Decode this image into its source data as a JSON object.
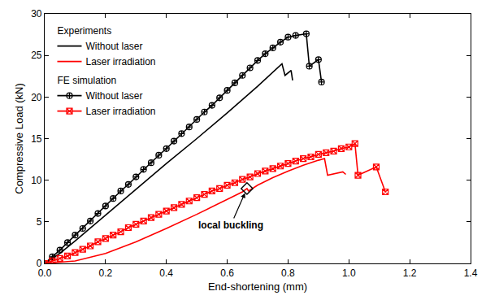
{
  "chart_data": {
    "type": "line",
    "x_label": "End-shortening (mm)",
    "y_label": "Compressive Load (kN)",
    "xlim": [
      0,
      1.4
    ],
    "xticks": [
      {
        "value": 0,
        "label": "0.0"
      },
      0.2,
      0.4,
      0.6,
      0.8,
      {
        "value": 1,
        "label": "1.0"
      },
      1.2,
      1.4
    ],
    "ylim": [
      0,
      30
    ],
    "yticks": [
      0,
      5,
      10,
      15,
      20,
      25,
      30
    ],
    "grid": false,
    "legend": "upper left",
    "series": [
      {
        "group": "Experiments",
        "name": "Without laser",
        "color": "#000000",
        "line_style": "solid",
        "marker": "none",
        "x": [
          0,
          0.05,
          0.1,
          0.2,
          0.3,
          0.4,
          0.5,
          0.6,
          0.7,
          0.78,
          0.79,
          0.81,
          0.815
        ],
        "values": [
          0,
          1.2,
          2.7,
          5.8,
          8.9,
          12.0,
          15.0,
          18.1,
          21.3,
          24.0,
          22.6,
          23.2,
          22.0
        ]
      },
      {
        "group": "Experiments",
        "name": "Laser irradiation",
        "color": "#ff0000",
        "line_style": "solid",
        "marker": "none",
        "x": [
          0,
          0.1,
          0.2,
          0.3,
          0.4,
          0.5,
          0.6,
          0.65,
          0.665,
          0.67,
          0.7,
          0.75,
          0.8,
          0.85,
          0.9,
          0.92,
          0.93,
          0.98,
          0.99
        ],
        "values": [
          0,
          0.3,
          1.2,
          2.6,
          4.2,
          5.9,
          7.7,
          8.6,
          9.0,
          8.7,
          9.4,
          10.3,
          11.1,
          11.8,
          12.4,
          12.6,
          10.6,
          11.0,
          10.7
        ]
      },
      {
        "group": "FE simulation",
        "name": "Without laser",
        "color": "#000000",
        "line_style": "solid",
        "marker": "circle-cross",
        "x": [
          0,
          0.025,
          0.05,
          0.075,
          0.1,
          0.125,
          0.15,
          0.175,
          0.2,
          0.225,
          0.25,
          0.275,
          0.3,
          0.325,
          0.35,
          0.375,
          0.4,
          0.425,
          0.45,
          0.475,
          0.5,
          0.525,
          0.55,
          0.575,
          0.6,
          0.625,
          0.65,
          0.675,
          0.7,
          0.725,
          0.75,
          0.775,
          0.8,
          0.825,
          0.86,
          0.87,
          0.9,
          0.91
        ],
        "values": [
          0,
          0.8,
          1.6,
          2.5,
          3.4,
          4.2,
          5.1,
          6.0,
          6.9,
          7.8,
          8.7,
          9.5,
          10.4,
          11.3,
          12.1,
          13.0,
          13.8,
          14.7,
          15.6,
          16.4,
          17.3,
          18.2,
          19.0,
          19.9,
          20.8,
          21.7,
          22.6,
          23.5,
          24.4,
          25.2,
          25.9,
          26.6,
          27.2,
          27.4,
          27.6,
          23.7,
          24.5,
          21.8
        ]
      },
      {
        "group": "FE simulation",
        "name": "Laser irradiation",
        "color": "#ff0000",
        "line_style": "solid",
        "marker": "square-x",
        "x": [
          0,
          0.025,
          0.05,
          0.075,
          0.1,
          0.125,
          0.15,
          0.175,
          0.2,
          0.225,
          0.25,
          0.275,
          0.3,
          0.325,
          0.35,
          0.375,
          0.4,
          0.425,
          0.45,
          0.475,
          0.5,
          0.525,
          0.55,
          0.575,
          0.6,
          0.625,
          0.65,
          0.675,
          0.7,
          0.725,
          0.75,
          0.775,
          0.8,
          0.825,
          0.85,
          0.875,
          0.9,
          0.925,
          0.95,
          0.975,
          1.0,
          1.02,
          1.03,
          1.09,
          1.12
        ],
        "values": [
          0,
          0.3,
          0.6,
          0.9,
          1.3,
          1.7,
          2.1,
          2.6,
          3.0,
          3.4,
          3.8,
          4.3,
          4.7,
          5.1,
          5.5,
          5.9,
          6.3,
          6.7,
          7.1,
          7.5,
          7.9,
          8.3,
          8.7,
          9.0,
          9.4,
          9.7,
          10.1,
          10.4,
          10.8,
          11.1,
          11.4,
          11.7,
          12.0,
          12.3,
          12.6,
          12.8,
          13.1,
          13.3,
          13.5,
          13.8,
          14.0,
          14.4,
          10.6,
          11.6,
          8.6
        ]
      }
    ],
    "annotations": [
      {
        "text": "local buckling",
        "x": 0.665,
        "y": 9.0,
        "marker": "diamond",
        "color": "#000000"
      }
    ]
  }
}
